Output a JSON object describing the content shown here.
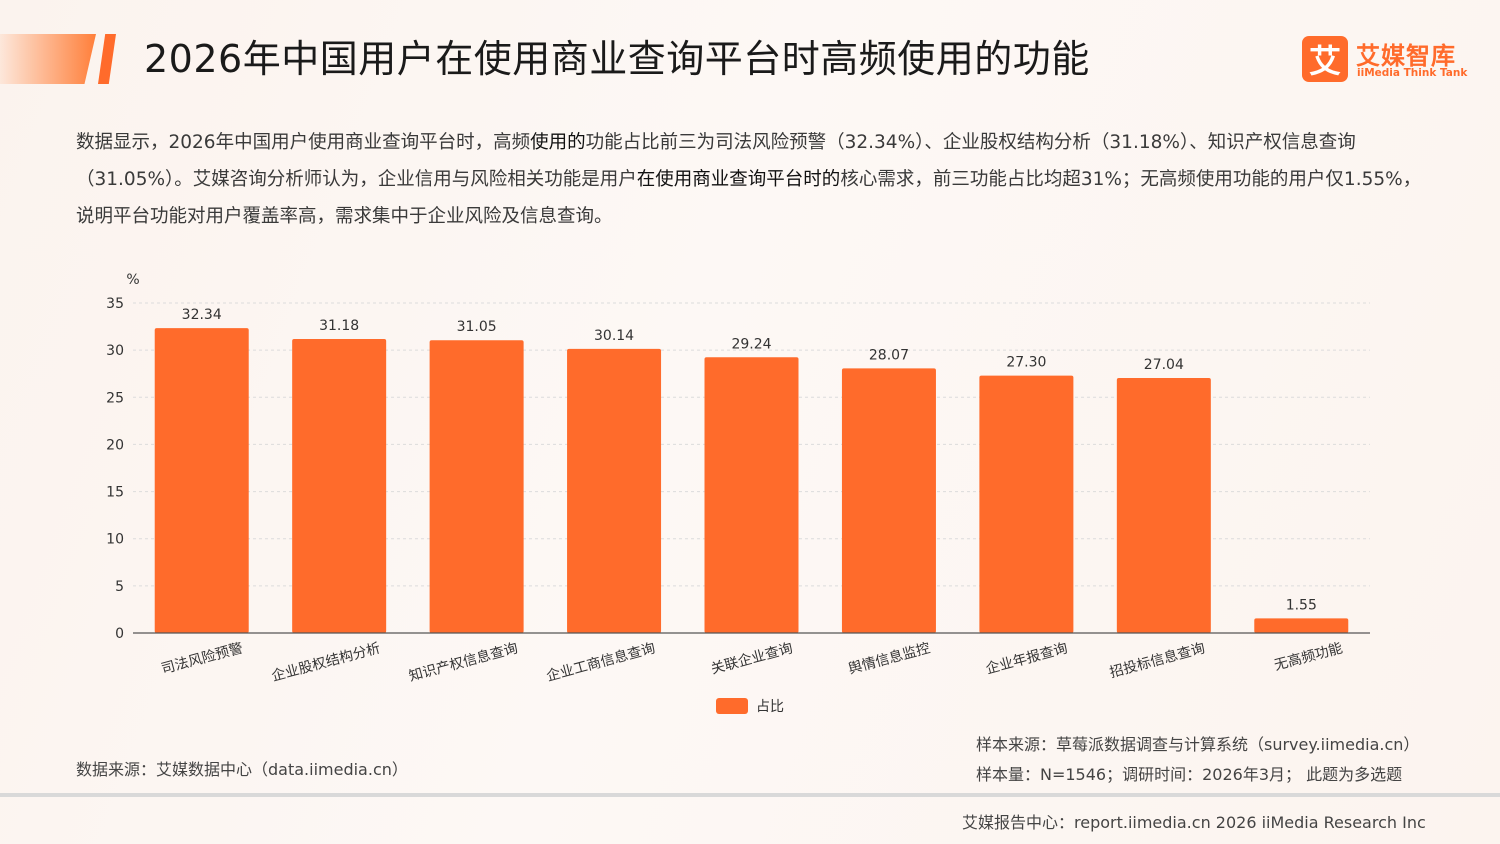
{
  "header": {
    "title": "2026年中国用户在使用商业查询平台时高频使用的功能",
    "logo_mark": "艾",
    "logo_cn": "艾媒智库",
    "logo_en": "iiMedia Think Tank"
  },
  "description": {
    "p1": "数据显示，2026年中国用户使用商业查询平台时，高频",
    "p2": "使用的",
    "p3": "功能占比前三为司法风险预警（32.34%）、企业股权结构分析（31.18%）、知识产权信息查询（31.05%）。艾媒咨询分析师认为，企业信用与风险相关功能是用户",
    "p4": "在使用商业查询平台时的",
    "p5": "核心需求，前三功能占比均超31%；无高频使用功能的用户仅1.55%，说明平台功能对用户覆盖率高，需求集中于企业风险及信息查询。"
  },
  "chart_data": {
    "type": "bar",
    "unit_label": "%",
    "categories": [
      "司法风险预警",
      "企业股权结构分析",
      "知识产权信息查询",
      "企业工商信息查询",
      "关联企业查询",
      "舆情信息监控",
      "企业年报查询",
      "招投标信息查询",
      "无高频功能"
    ],
    "series": [
      {
        "name": "占比",
        "values": [
          32.34,
          31.18,
          31.05,
          30.14,
          29.24,
          28.07,
          27.3,
          27.04,
          1.55
        ]
      }
    ],
    "value_labels": [
      "32.34",
      "31.18",
      "31.05",
      "30.14",
      "29.24",
      "28.07",
      "27.30",
      "27.04",
      "1.55"
    ],
    "ylim": [
      0,
      35
    ],
    "yticks": [
      0,
      5,
      10,
      15,
      20,
      25,
      30,
      35
    ],
    "grid": true,
    "legend": "bottom-center",
    "bar_color": "#ff6b2b"
  },
  "footer": {
    "source_left": "数据来源：艾媒数据中心（data.iimedia.cn）",
    "source_right": "样本来源：草莓派数据调查与计算系统（survey.iimedia.cn）",
    "sample": "样本量：N=1546；调研时间：2026年3月；  此题为多选题",
    "bottom": "艾媒报告中心：report.iimedia.cn   2026 iiMedia Research Inc"
  },
  "colors": {
    "accent": "#ff6b2b",
    "title": "#1a1a1a",
    "grid": "#dcdcdc"
  }
}
